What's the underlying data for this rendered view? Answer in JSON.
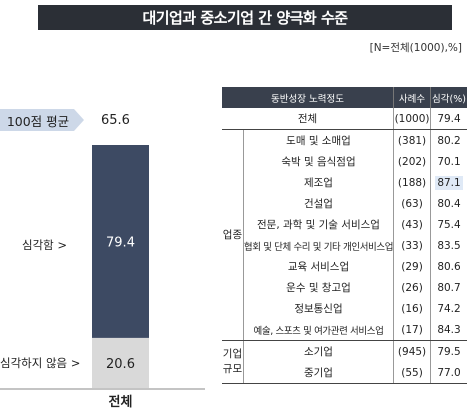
{
  "title": "대기업과 중소기업 간 양극화 수준",
  "note": "[N=전체(1000),%]",
  "left": {
    "avg_label": "100점 평균",
    "avg_value": "65.6",
    "label_serious": "심각함 >",
    "label_not_serious": "심각하지 않음 >",
    "category": "전체"
  },
  "chart_data": {
    "type": "bar",
    "stacked": true,
    "categories": [
      "전체"
    ],
    "series": [
      {
        "name": "심각함",
        "values": [
          79.4
        ],
        "color": "#3d4a63"
      },
      {
        "name": "심각하지 않음",
        "values": [
          20.6
        ],
        "color": "#d9d9d9"
      }
    ],
    "average_label": "100점 평균",
    "average": 65.6,
    "ylim": [
      0,
      100
    ]
  },
  "table": {
    "headers": [
      "동반성장 노력정도",
      "사례수",
      "심각(%)"
    ],
    "total": {
      "label": "전체",
      "n": "(1000)",
      "value": "79.4"
    },
    "groups": [
      {
        "name": "업종",
        "rows": [
          {
            "label": "도매 및 소매업",
            "n": "(381)",
            "value": "80.2"
          },
          {
            "label": "숙박 및 음식점업",
            "n": "(202)",
            "value": "70.1"
          },
          {
            "label": "제조업",
            "n": "(188)",
            "value": "87.1",
            "highlight": true
          },
          {
            "label": "건설업",
            "n": "(63)",
            "value": "80.4"
          },
          {
            "label": "전문, 과학 및 기술 서비스업",
            "n": "(43)",
            "value": "75.4"
          },
          {
            "label": "협회 및 단체 수리 및 기타 개인서비스업",
            "n": "(33)",
            "value": "83.5"
          },
          {
            "label": "교육 서비스업",
            "n": "(29)",
            "value": "80.6"
          },
          {
            "label": "운수 및 창고업",
            "n": "(26)",
            "value": "80.7"
          },
          {
            "label": "정보통신업",
            "n": "(16)",
            "value": "74.2"
          },
          {
            "label": "예술, 스포츠 및 여가관련 서비스업",
            "n": "(17)",
            "value": "84.3"
          }
        ]
      },
      {
        "name": "기업 규모",
        "name_lines": [
          "기업",
          "규모"
        ],
        "rows": [
          {
            "label": "소기업",
            "n": "(945)",
            "value": "79.5"
          },
          {
            "label": "중기업",
            "n": "(55)",
            "value": "77.0"
          }
        ]
      }
    ]
  }
}
